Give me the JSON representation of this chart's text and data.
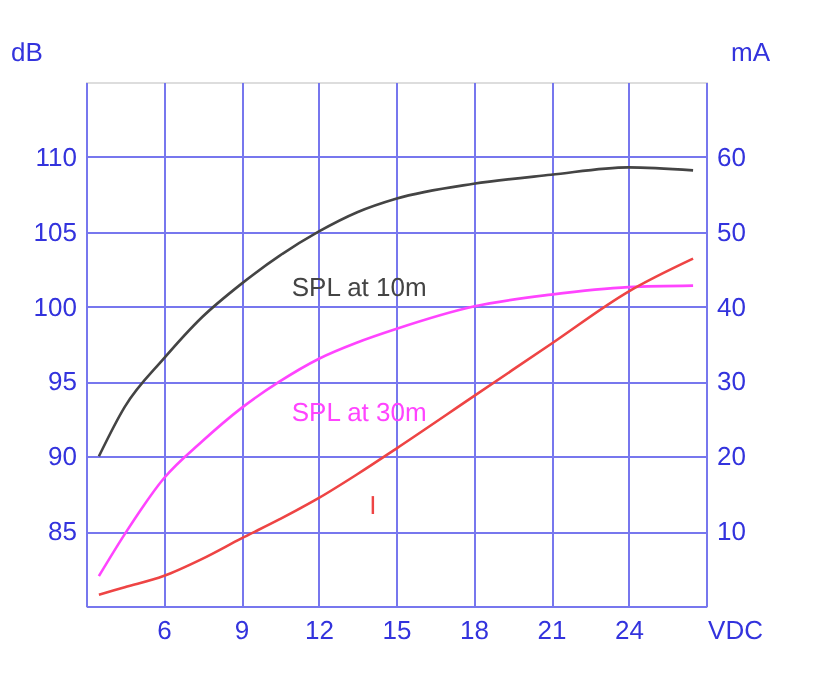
{
  "chart_data": {
    "type": "line",
    "xlabel": "VDC",
    "ylabel": "dB",
    "y2label": "mA",
    "x": [
      3.5,
      4.5,
      6,
      7.5,
      9,
      10.5,
      12,
      13.5,
      15,
      18,
      21,
      24,
      26.5
    ],
    "series": [
      {
        "name": "SPL at 10m",
        "color": "#444444",
        "values": [
          90,
          93.3,
          96.5,
          99.3,
          101.5,
          103.4,
          105,
          106.3,
          107.2,
          108.2,
          108.8,
          109.3,
          109.1
        ]
      },
      {
        "name": "SPL at 30m",
        "color": "#ff44ff",
        "values": [
          82,
          84.8,
          88.5,
          91,
          93.2,
          95,
          96.5,
          97.6,
          98.5,
          100,
          100.8,
          101.3,
          101.4
        ]
      },
      {
        "name": "I",
        "color": "#ee4444",
        "axis": "y2",
        "values": [
          1.5,
          2.5,
          4,
          6.3,
          9,
          11.6,
          14.4,
          17.6,
          21,
          28,
          35,
          42,
          46.4
        ]
      }
    ],
    "xlim": [
      3,
      27
    ],
    "xticks": [
      6,
      9,
      12,
      15,
      18,
      21,
      24
    ],
    "ylim": [
      80,
      115
    ],
    "yticks": [
      85,
      90,
      95,
      100,
      105,
      110
    ],
    "y2lim": [
      0,
      70
    ],
    "y2ticks": [
      10,
      20,
      30,
      40,
      50,
      60
    ],
    "grid": true,
    "legend": false,
    "marker": "none",
    "line_style": "solid"
  }
}
